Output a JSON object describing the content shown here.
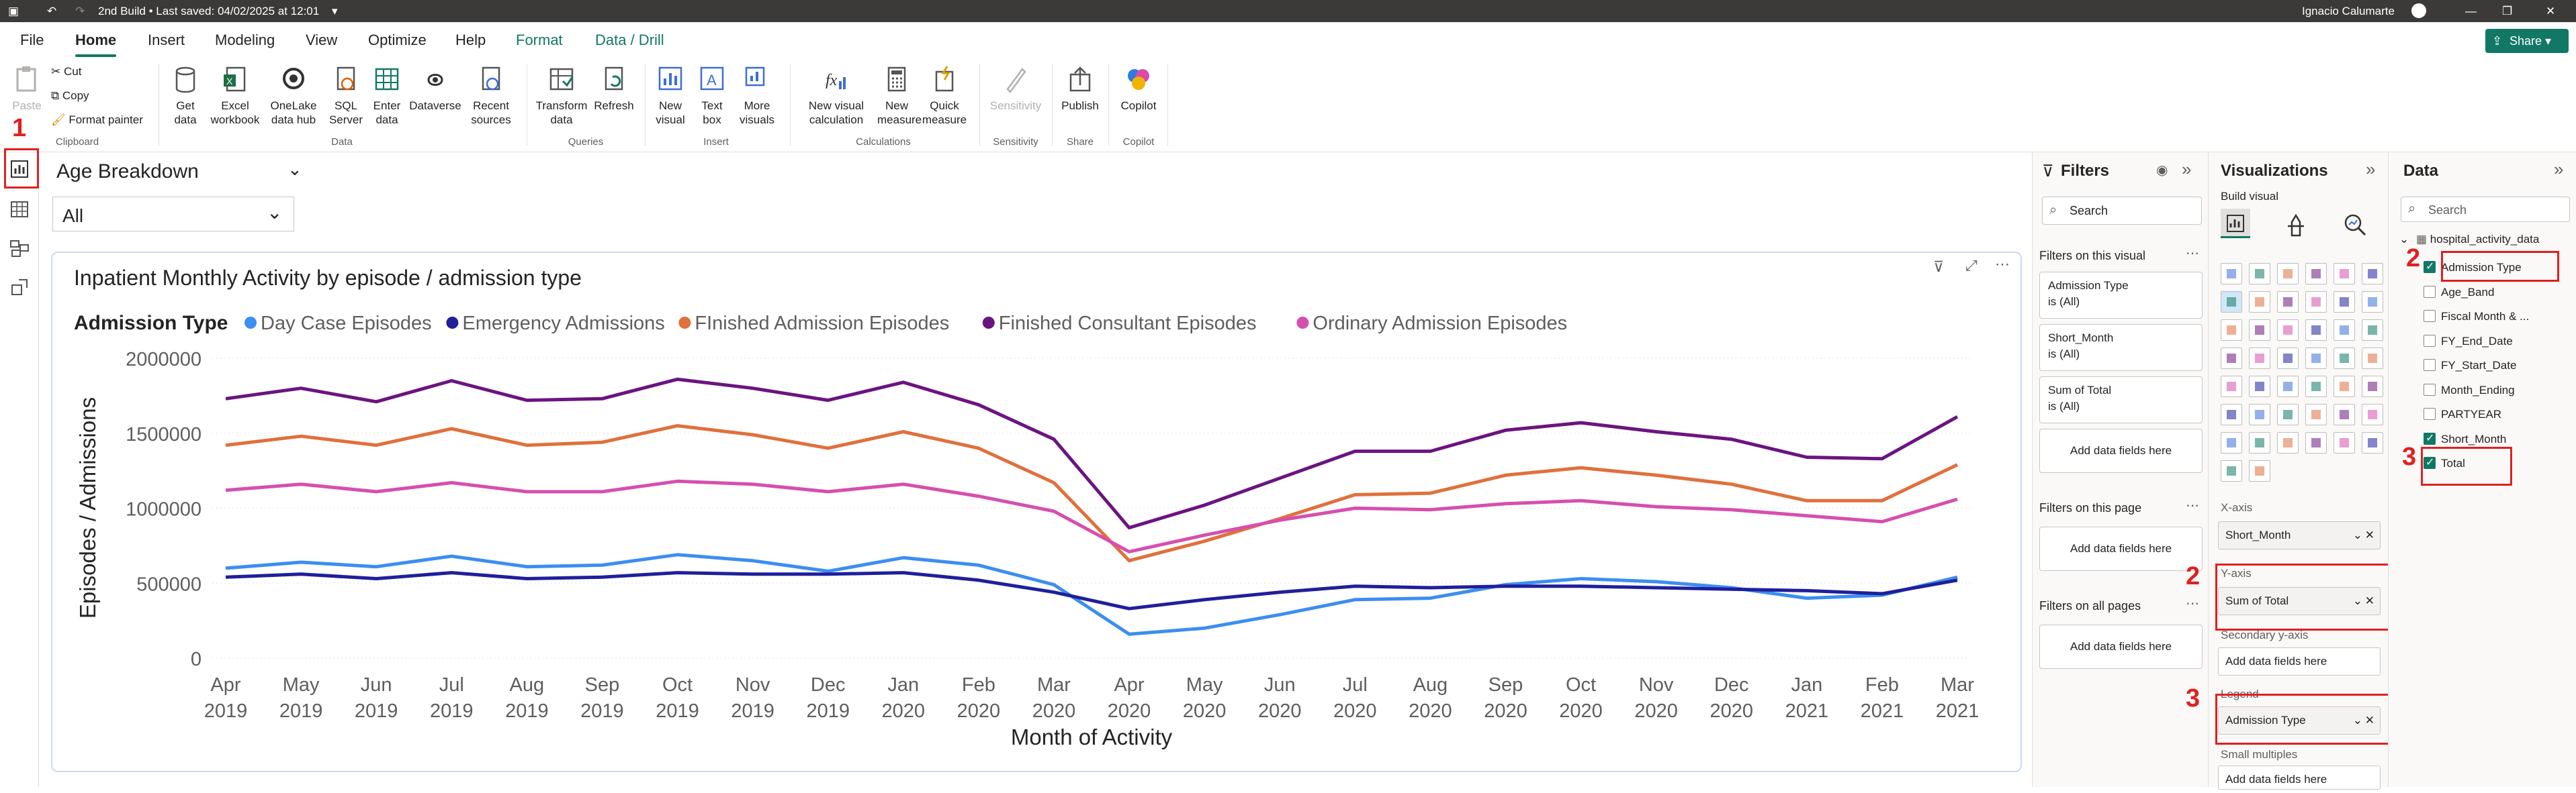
{
  "titlebar": {
    "doc_title": "2nd Build • Last saved: 04/02/2025 at 12:01",
    "user": "Ignacio Calumarte"
  },
  "menu": [
    "File",
    "Home",
    "Insert",
    "Modeling",
    "View",
    "Optimize",
    "Help",
    "Format",
    "Data / Drill"
  ],
  "share_label": "Share",
  "ribbon": {
    "clipboard": {
      "paste": "Paste",
      "cut": "Cut",
      "copy": "Copy",
      "format_painter": "Format painter",
      "group": "Clipboard"
    },
    "data": {
      "get_data": "Get data",
      "excel": "Excel workbook",
      "onelake": "OneLake data hub",
      "sql": "SQL Server",
      "enter": "Enter data",
      "dataverse": "Dataverse",
      "recent": "Recent sources",
      "group": "Data"
    },
    "queries": {
      "transform": "Transform data",
      "refresh": "Refresh",
      "group": "Queries"
    },
    "insert": {
      "new_visual": "New visual",
      "text_box": "Text box",
      "more": "More visuals",
      "group": "Insert"
    },
    "calc": {
      "new_vcalc": "New visual calculation",
      "new_measure": "New measure",
      "quick": "Quick measure",
      "group": "Calculations"
    },
    "sensitivity": {
      "label": "Sensitivity",
      "group": "Sensitivity"
    },
    "share": {
      "publish": "Publish",
      "group": "Share"
    },
    "copilot": {
      "label": "Copilot",
      "group": "Copilot"
    }
  },
  "slicer": {
    "title": "Age Breakdown",
    "value": "All"
  },
  "chart_data": {
    "type": "line",
    "title": "Inpatient Monthly Activity by episode / admission type",
    "legend_title": "Admission Type",
    "xlabel": "Month of Activity",
    "ylabel": "Episodes / Admissions",
    "ylim": [
      0,
      2000000
    ],
    "yticks": [
      "2000000",
      "1500000",
      "1000000",
      "500000",
      "0"
    ],
    "categories": [
      [
        "Apr",
        "2019"
      ],
      [
        "May",
        "2019"
      ],
      [
        "Jun",
        "2019"
      ],
      [
        "Jul",
        "2019"
      ],
      [
        "Aug",
        "2019"
      ],
      [
        "Sep",
        "2019"
      ],
      [
        "Oct",
        "2019"
      ],
      [
        "Nov",
        "2019"
      ],
      [
        "Dec",
        "2019"
      ],
      [
        "Jan",
        "2020"
      ],
      [
        "Feb",
        "2020"
      ],
      [
        "Mar",
        "2020"
      ],
      [
        "Apr",
        "2020"
      ],
      [
        "May",
        "2020"
      ],
      [
        "Jun",
        "2020"
      ],
      [
        "Jul",
        "2020"
      ],
      [
        "Aug",
        "2020"
      ],
      [
        "Sep",
        "2020"
      ],
      [
        "Oct",
        "2020"
      ],
      [
        "Nov",
        "2020"
      ],
      [
        "Dec",
        "2020"
      ],
      [
        "Jan",
        "2021"
      ],
      [
        "Feb",
        "2021"
      ],
      [
        "Mar",
        "2021"
      ]
    ],
    "series": [
      {
        "name": "Day Case Episodes",
        "color": "#3c8ef0",
        "values": [
          600000,
          640000,
          610000,
          680000,
          610000,
          620000,
          690000,
          650000,
          580000,
          670000,
          620000,
          490000,
          160000,
          200000,
          290000,
          390000,
          400000,
          490000,
          530000,
          510000,
          470000,
          400000,
          420000,
          540000
        ]
      },
      {
        "name": "Emergency Admissions",
        "color": "#1f1f9c",
        "values": [
          540000,
          560000,
          530000,
          570000,
          530000,
          540000,
          570000,
          560000,
          560000,
          570000,
          520000,
          440000,
          330000,
          390000,
          440000,
          480000,
          470000,
          480000,
          480000,
          470000,
          460000,
          450000,
          430000,
          520000
        ]
      },
      {
        "name": "FInished Admission Episodes",
        "color": "#e0703c",
        "values": [
          1420000,
          1480000,
          1420000,
          1530000,
          1420000,
          1440000,
          1550000,
          1490000,
          1400000,
          1510000,
          1400000,
          1170000,
          650000,
          780000,
          930000,
          1090000,
          1100000,
          1220000,
          1270000,
          1220000,
          1160000,
          1050000,
          1050000,
          1290000
        ]
      },
      {
        "name": "Finished Consultant Episodes",
        "color": "#6b1480",
        "values": [
          1730000,
          1800000,
          1710000,
          1850000,
          1720000,
          1730000,
          1860000,
          1800000,
          1720000,
          1840000,
          1690000,
          1460000,
          870000,
          1020000,
          1200000,
          1380000,
          1380000,
          1520000,
          1570000,
          1510000,
          1460000,
          1340000,
          1330000,
          1610000
        ]
      },
      {
        "name": "Ordinary Admission Episodes",
        "color": "#d64fae",
        "values": [
          1120000,
          1160000,
          1110000,
          1170000,
          1110000,
          1110000,
          1180000,
          1160000,
          1110000,
          1160000,
          1080000,
          980000,
          710000,
          820000,
          920000,
          1000000,
          990000,
          1030000,
          1050000,
          1010000,
          990000,
          950000,
          910000,
          1060000
        ]
      }
    ]
  },
  "annotations": {
    "n1": "1",
    "n2a": "2",
    "n2b": "2",
    "n3a": "3",
    "n3b": "3"
  },
  "filters": {
    "title": "Filters",
    "search": "Search",
    "on_visual": "Filters on this visual",
    "cards": [
      {
        "name": "Admission Type",
        "state": "is (All)"
      },
      {
        "name": "Short_Month",
        "state": "is (All)"
      },
      {
        "name": "Sum of Total",
        "state": "is (All)"
      }
    ],
    "add": "Add data fields here",
    "on_page": "Filters on this page",
    "on_all": "Filters on all pages"
  },
  "viz": {
    "title": "Visualizations",
    "build": "Build visual",
    "xaxis_label": "X-axis",
    "xaxis_value": "Short_Month",
    "yaxis_label": "Y-axis",
    "yaxis_value": "Sum of Total",
    "secondary": "Secondary y-axis",
    "add": "Add data fields here",
    "legend_label": "Legend",
    "legend_value": "Admission Type",
    "small_multiples": "Small multiples"
  },
  "data": {
    "title": "Data",
    "search": "Search",
    "table": "hospital_activity_data",
    "fields": [
      {
        "name": "Admission Type",
        "checked": true
      },
      {
        "name": "Age_Band",
        "checked": false
      },
      {
        "name": "Fiscal Month & ...",
        "checked": false
      },
      {
        "name": "FY_End_Date",
        "checked": false
      },
      {
        "name": "FY_Start_Date",
        "checked": false
      },
      {
        "name": "Month_Ending",
        "checked": false
      },
      {
        "name": "PARTYEAR",
        "checked": false
      },
      {
        "name": "Short_Month",
        "checked": true
      },
      {
        "name": "Total",
        "checked": true
      }
    ]
  }
}
